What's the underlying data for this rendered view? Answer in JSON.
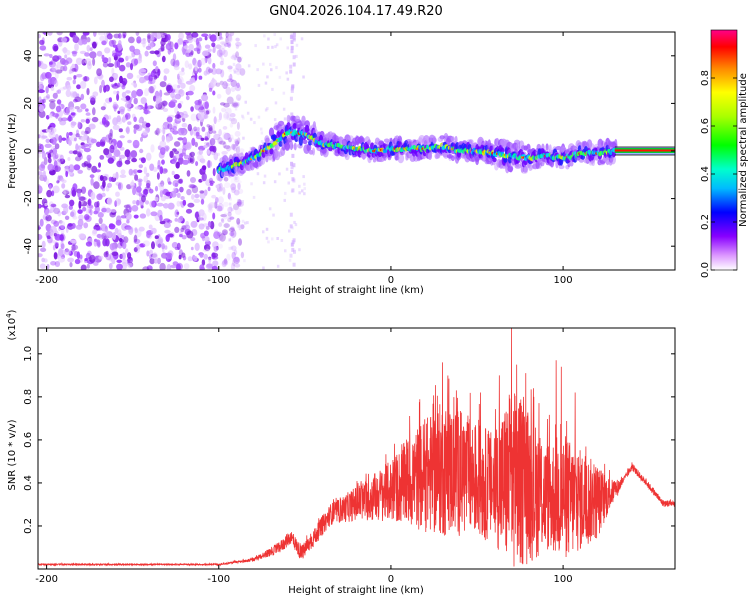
{
  "title": "GN04.2026.104.17.49.R20",
  "colors": {
    "snr_line": "#ee3333",
    "axis": "#000000",
    "background": "#ffffff"
  },
  "chart_data": [
    {
      "type": "heatmap",
      "name": "spectrogram",
      "xlabel": "Height of straight line (km)",
      "ylabel": "Frequency (Hz)",
      "xlim": [
        -205,
        165
      ],
      "ylim": [
        -50,
        50
      ],
      "xticks": [
        -200,
        -100,
        0,
        100
      ],
      "xtick_labels": [
        "-200",
        "-100",
        "0",
        "100"
      ],
      "yticks": [
        -40,
        -20,
        0,
        20,
        40
      ],
      "ytick_labels": [
        "-40",
        "-20",
        "0",
        "20",
        "40"
      ],
      "colorbar": {
        "label": "Normalized spectral amplitude",
        "range": [
          0,
          1
        ],
        "ticks": [
          0.0,
          0.2,
          0.4,
          0.6,
          0.8
        ],
        "tick_labels": [
          "0.0",
          "0.2",
          "0.4",
          "0.6",
          "0.8"
        ]
      },
      "features": {
        "noise_region_km": [
          -205,
          -92
        ],
        "signal_start_km": -100,
        "interference_km": -58,
        "steady_tone_km": [
          130,
          165
        ],
        "ridge": [
          [
            -100,
            -8
          ],
          [
            -90,
            -6
          ],
          [
            -80,
            -3
          ],
          [
            -70,
            2
          ],
          [
            -60,
            8
          ],
          [
            -50,
            7
          ],
          [
            -40,
            3
          ],
          [
            -30,
            2
          ],
          [
            -20,
            1
          ],
          [
            -10,
            0
          ],
          [
            0,
            1
          ],
          [
            10,
            1
          ],
          [
            20,
            1
          ],
          [
            30,
            2
          ],
          [
            40,
            0
          ],
          [
            50,
            0
          ],
          [
            60,
            -1
          ],
          [
            70,
            -2
          ],
          [
            80,
            -3
          ],
          [
            90,
            -2
          ],
          [
            100,
            -3
          ],
          [
            110,
            -1
          ],
          [
            120,
            -1
          ],
          [
            130,
            0
          ],
          [
            165,
            0
          ]
        ]
      }
    },
    {
      "type": "line",
      "name": "snr",
      "xlabel": "Height of straight line (km)",
      "ylabel": "SNR (10 * v/v)",
      "y_scale_note": "(x10",
      "y_scale_exponent": "4",
      "xlim": [
        -205,
        165
      ],
      "ylim": [
        0,
        1.12
      ],
      "xticks": [
        -200,
        -100,
        0,
        100
      ],
      "xtick_labels": [
        "-200",
        "-100",
        "0",
        "100"
      ],
      "yticks": [
        0.2,
        0.4,
        0.6,
        0.8,
        1.0
      ],
      "ytick_labels": [
        "0.2",
        "0.4",
        "0.6",
        "0.8",
        "1.0"
      ],
      "series": [
        {
          "name": "SNR",
          "envelope_base": [
            [
              -205,
              0.02
            ],
            [
              -150,
              0.02
            ],
            [
              -100,
              0.02
            ],
            [
              -80,
              0.04
            ],
            [
              -65,
              0.09
            ],
            [
              -58,
              0.14
            ],
            [
              -52,
              0.06
            ],
            [
              -45,
              0.13
            ],
            [
              -35,
              0.24
            ],
            [
              -20,
              0.28
            ],
            [
              -10,
              0.3
            ],
            [
              0,
              0.32
            ],
            [
              15,
              0.35
            ],
            [
              30,
              0.37
            ],
            [
              45,
              0.35
            ],
            [
              60,
              0.3
            ],
            [
              75,
              0.28
            ],
            [
              90,
              0.26
            ],
            [
              105,
              0.24
            ],
            [
              120,
              0.26
            ],
            [
              132,
              0.37
            ],
            [
              140,
              0.47
            ],
            [
              150,
              0.38
            ],
            [
              158,
              0.3
            ],
            [
              165,
              0.3
            ]
          ],
          "envelope_spread": [
            [
              -205,
              0.004
            ],
            [
              -100,
              0.004
            ],
            [
              -80,
              0.01
            ],
            [
              -60,
              0.04
            ],
            [
              -45,
              0.05
            ],
            [
              -30,
              0.07
            ],
            [
              -15,
              0.12
            ],
            [
              0,
              0.18
            ],
            [
              15,
              0.3
            ],
            [
              30,
              0.4
            ],
            [
              45,
              0.35
            ],
            [
              60,
              0.32
            ],
            [
              70,
              0.55
            ],
            [
              80,
              0.45
            ],
            [
              90,
              0.32
            ],
            [
              100,
              0.38
            ],
            [
              110,
              0.3
            ],
            [
              120,
              0.22
            ],
            [
              128,
              0.08
            ],
            [
              135,
              0.02
            ],
            [
              165,
              0.02
            ]
          ],
          "peaks": [
            [
              30,
              0.96
            ],
            [
              38,
              0.83
            ],
            [
              52,
              0.82
            ],
            [
              63,
              0.9
            ],
            [
              70,
              1.12
            ],
            [
              73,
              0.95
            ],
            [
              77,
              0.8
            ],
            [
              83,
              0.8
            ],
            [
              96,
              0.97
            ],
            [
              99,
              0.94
            ],
            [
              107,
              0.82
            ]
          ]
        }
      ]
    }
  ]
}
